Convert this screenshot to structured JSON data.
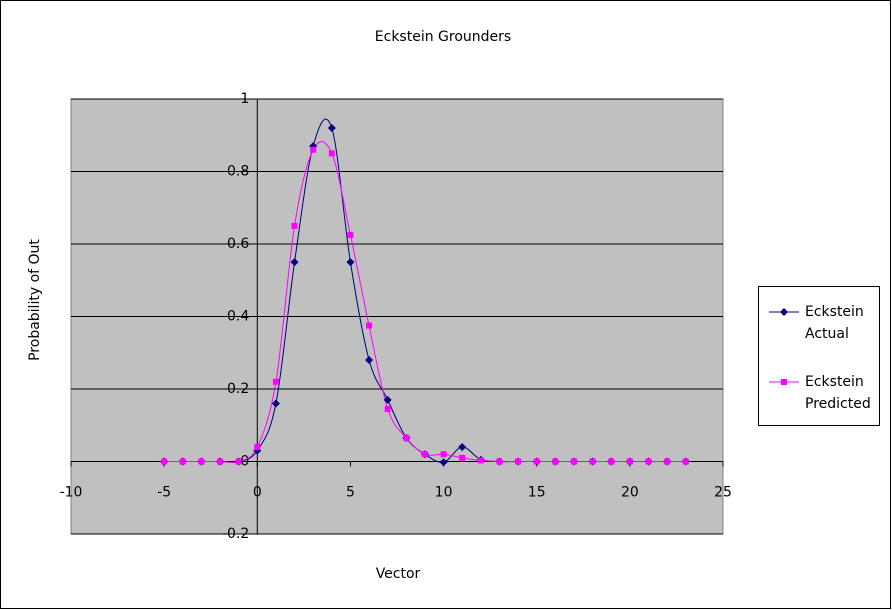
{
  "chart_data": {
    "type": "scatter",
    "title": "Eckstein Grounders",
    "x_label": "Vector",
    "y_label": "Probability of Out",
    "xlim": [
      -10,
      25
    ],
    "xticks": [
      -10,
      -5,
      0,
      5,
      10,
      15,
      20,
      25
    ],
    "ylim": [
      -0.2,
      1
    ],
    "yticks": [
      -0.2,
      0,
      0.2,
      0.4,
      0.6,
      0.8,
      1
    ],
    "grid": true,
    "smooth": true,
    "legend": "right",
    "series": [
      {
        "name": "Eckstein Actual",
        "color": "#000080",
        "marker": "diamond",
        "x": [
          -5,
          -4,
          -3,
          -2,
          -1,
          0,
          1,
          2,
          3,
          4,
          5,
          6,
          7,
          8,
          9,
          10,
          11,
          12,
          13,
          14,
          15,
          16,
          17,
          18,
          19,
          20,
          21,
          22,
          23
        ],
        "values": [
          0,
          0,
          0,
          0,
          0,
          0.03,
          0.16,
          0.55,
          0.87,
          0.92,
          0.55,
          0.28,
          0.17,
          0.065,
          0.02,
          -0.002,
          0.04,
          0.005,
          0,
          0,
          0,
          0,
          0,
          0,
          0,
          0,
          0,
          0,
          0
        ]
      },
      {
        "name": "Eckstein Predicted",
        "color": "#ff00ff",
        "marker": "square",
        "x": [
          -5,
          -4,
          -3,
          -2,
          -1,
          0,
          1,
          2,
          3,
          4,
          5,
          6,
          7,
          8,
          9,
          10,
          11,
          12,
          13,
          14,
          15,
          16,
          17,
          18,
          19,
          20,
          21,
          22,
          23
        ],
        "values": [
          0,
          0,
          0,
          0,
          0,
          0.04,
          0.22,
          0.65,
          0.86,
          0.85,
          0.625,
          0.375,
          0.145,
          0.065,
          0.02,
          0.02,
          0.01,
          0.003,
          0,
          0,
          0,
          0,
          0,
          0,
          0,
          0,
          0,
          0,
          0
        ]
      }
    ]
  }
}
